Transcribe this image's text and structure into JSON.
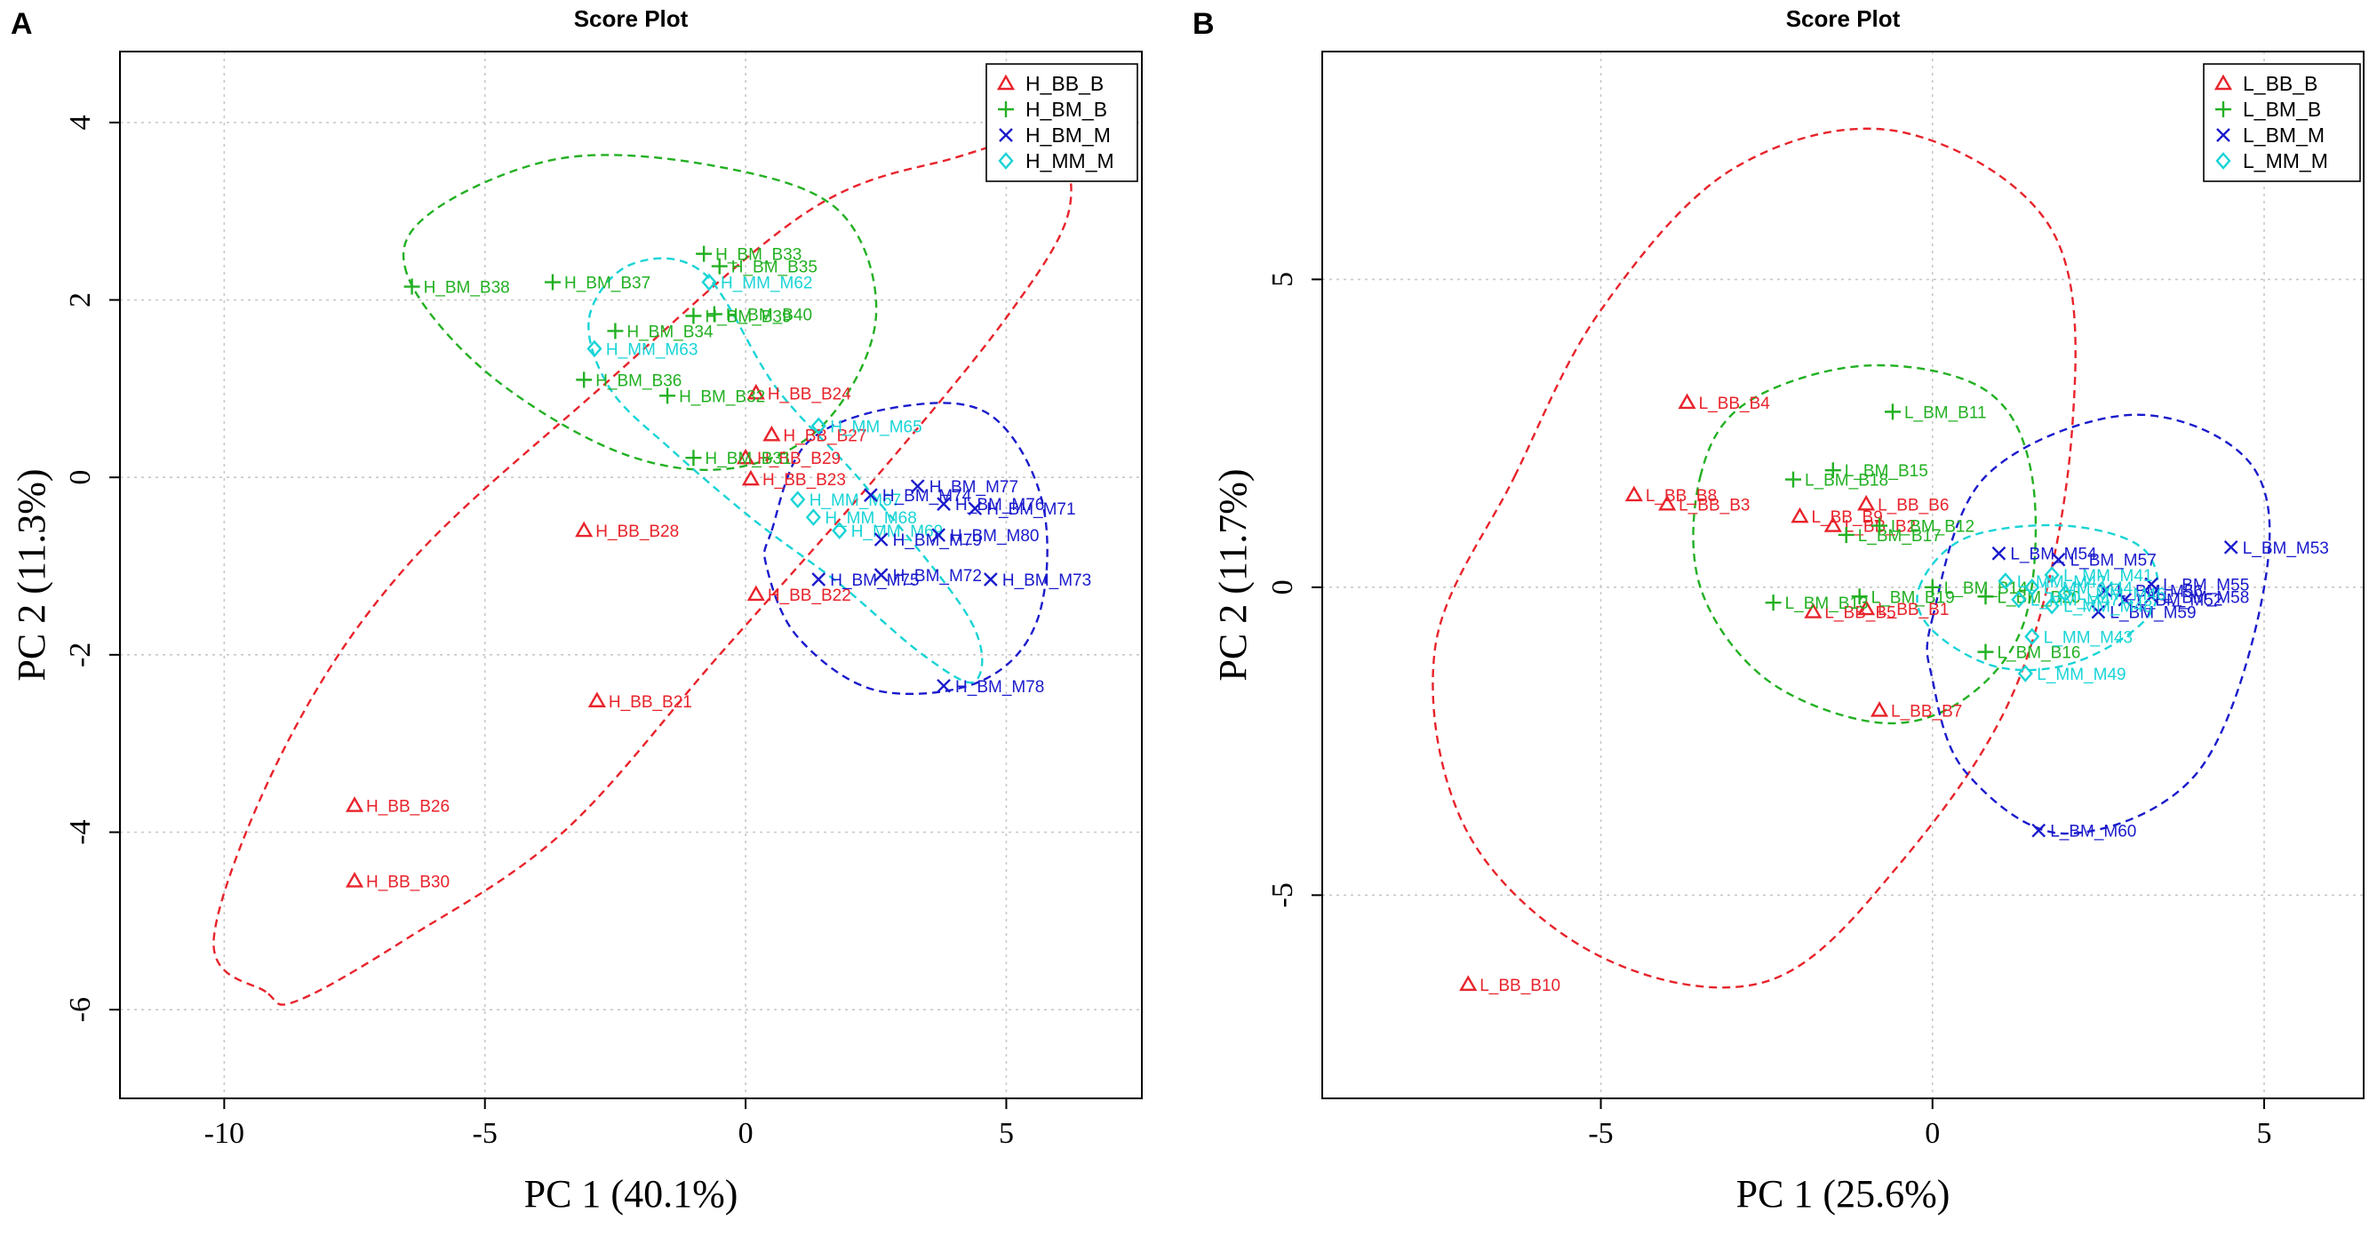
{
  "chart_data": [
    {
      "type": "scatter",
      "panel": "A",
      "title": "Score Plot",
      "xlabel": "PC 1 (40.1%)",
      "ylabel": "PC 2 (11.3%)",
      "xlim": [
        -12,
        7.6
      ],
      "ylim": [
        -7.0,
        4.8
      ],
      "xticks": [
        -10,
        -5,
        0,
        5
      ],
      "yticks": [
        -6,
        -4,
        -2,
        0,
        2,
        4
      ],
      "grid": true,
      "legend_position": "top-right",
      "colors": {
        "BB": "#e8232b",
        "BM_B": "#22b022",
        "BM_M": "#1a1acc",
        "MM": "#19d4d6"
      },
      "legend": [
        {
          "label": "H_BB_B",
          "group": "BB",
          "marker": "triangle"
        },
        {
          "label": "H_BM_B",
          "group": "BM_B",
          "marker": "plus"
        },
        {
          "label": "H_BM_M",
          "group": "BM_M",
          "marker": "cross"
        },
        {
          "label": "H_MM_M",
          "group": "MM",
          "marker": "diamond"
        }
      ],
      "ellipses": [
        {
          "group": "BB",
          "points": [
            [
              -9.2,
              -5.8
            ],
            [
              -10.2,
              -5.2
            ],
            [
              -8.8,
              -3.0
            ],
            [
              -6.5,
              -1.0
            ],
            [
              -2.8,
              1.0
            ],
            [
              1.2,
              3.0
            ],
            [
              4.0,
              3.6
            ],
            [
              5.8,
              3.8
            ],
            [
              6.2,
              3.0
            ],
            [
              5.0,
              1.8
            ],
            [
              2.5,
              0.0
            ],
            [
              -0.5,
              -2.0
            ],
            [
              -3.5,
              -4.0
            ],
            [
              -6.5,
              -5.2
            ],
            [
              -8.6,
              -5.9
            ]
          ]
        },
        {
          "group": "BM_B",
          "points": [
            [
              -6.5,
              2.3
            ],
            [
              -6.0,
              3.0
            ],
            [
              -3.5,
              3.6
            ],
            [
              -0.5,
              3.5
            ],
            [
              1.8,
              3.0
            ],
            [
              2.5,
              1.8
            ],
            [
              1.5,
              0.6
            ],
            [
              -0.3,
              0.1
            ],
            [
              -2.5,
              0.3
            ],
            [
              -5.0,
              1.2
            ]
          ]
        },
        {
          "group": "BM_M",
          "points": [
            [
              0.5,
              -0.6
            ],
            [
              1.2,
              0.4
            ],
            [
              3.0,
              0.8
            ],
            [
              4.7,
              0.7
            ],
            [
              5.7,
              -0.3
            ],
            [
              5.6,
              -1.6
            ],
            [
              4.5,
              -2.3
            ],
            [
              2.5,
              -2.4
            ],
            [
              1.0,
              -1.8
            ],
            [
              0.4,
              -1.0
            ]
          ]
        },
        {
          "group": "MM",
          "points": [
            [
              -3.0,
              1.8
            ],
            [
              -2.2,
              2.4
            ],
            [
              -0.8,
              2.3
            ],
            [
              0.6,
              1.0
            ],
            [
              2.3,
              -0.1
            ],
            [
              4.3,
              -1.6
            ],
            [
              4.4,
              -2.3
            ],
            [
              3.4,
              -2.0
            ],
            [
              1.8,
              -1.2
            ],
            [
              0.2,
              -0.5
            ],
            [
              -1.4,
              0.3
            ],
            [
              -2.6,
              1.0
            ]
          ]
        }
      ],
      "points": [
        {
          "group": "BB",
          "label": "H_BB_B24",
          "x": 0.2,
          "y": 0.95
        },
        {
          "group": "BB",
          "label": "H_BB_B27",
          "x": 0.5,
          "y": 0.48
        },
        {
          "group": "BB",
          "label": "H_BB_B29",
          "x": 0.0,
          "y": 0.22
        },
        {
          "group": "BB",
          "label": "H_BB_B23",
          "x": 0.1,
          "y": -0.02
        },
        {
          "group": "BB",
          "label": "H_BB_B28",
          "x": -3.1,
          "y": -0.6
        },
        {
          "group": "BB",
          "label": "H_BB_B22",
          "x": 0.2,
          "y": -1.32
        },
        {
          "group": "BB",
          "label": "H_BB_B21",
          "x": -2.85,
          "y": -2.52
        },
        {
          "group": "BB",
          "label": "H_BB_B26",
          "x": -7.5,
          "y": -3.7
        },
        {
          "group": "BB",
          "label": "H_BB_B30",
          "x": -7.5,
          "y": -4.55
        },
        {
          "group": "BM_B",
          "label": "H_BM_B38",
          "x": -6.4,
          "y": 2.15
        },
        {
          "group": "BM_B",
          "label": "H_BM_B37",
          "x": -3.7,
          "y": 2.2
        },
        {
          "group": "BM_B",
          "label": "H_BM_B33",
          "x": -0.8,
          "y": 2.52
        },
        {
          "group": "BM_B",
          "label": "H_BM_B35",
          "x": -0.5,
          "y": 2.38
        },
        {
          "group": "BM_B",
          "label": "H_BM_B34",
          "x": -2.5,
          "y": 1.65
        },
        {
          "group": "BM_B",
          "label": "H_BM_B39",
          "x": -1.0,
          "y": 1.82
        },
        {
          "group": "BM_B",
          "label": "H_BM_B40",
          "x": -0.6,
          "y": 1.84
        },
        {
          "group": "BM_B",
          "label": "H_BM_B36",
          "x": -3.1,
          "y": 1.1
        },
        {
          "group": "BM_B",
          "label": "H_BM_B32",
          "x": -1.5,
          "y": 0.92
        },
        {
          "group": "BM_B",
          "label": "H_BM_B31",
          "x": -1.0,
          "y": 0.22
        },
        {
          "group": "MM",
          "label": "H_MM_M62",
          "x": -0.7,
          "y": 2.2
        },
        {
          "group": "MM",
          "label": "H_MM_M63",
          "x": -2.9,
          "y": 1.45
        },
        {
          "group": "MM",
          "label": "H_MM_M65",
          "x": 1.4,
          "y": 0.58
        },
        {
          "group": "MM",
          "label": "H_MM_M67",
          "x": 1.0,
          "y": -0.25
        },
        {
          "group": "MM",
          "label": "H_MM_M68",
          "x": 1.3,
          "y": -0.45
        },
        {
          "group": "MM",
          "label": "H_MM_M69",
          "x": 1.8,
          "y": -0.6
        },
        {
          "group": "BM_M",
          "label": "H_BM_M74",
          "x": 2.4,
          "y": -0.2
        },
        {
          "group": "BM_M",
          "label": "H_BM_M77",
          "x": 3.3,
          "y": -0.1
        },
        {
          "group": "BM_M",
          "label": "H_BM_M76",
          "x": 3.8,
          "y": -0.3
        },
        {
          "group": "BM_M",
          "label": "H_BM_M71",
          "x": 4.4,
          "y": -0.35
        },
        {
          "group": "BM_M",
          "label": "H_BM_M79",
          "x": 2.6,
          "y": -0.7
        },
        {
          "group": "BM_M",
          "label": "H_BM_M80",
          "x": 3.7,
          "y": -0.65
        },
        {
          "group": "BM_M",
          "label": "H_BM_M72",
          "x": 2.6,
          "y": -1.1
        },
        {
          "group": "BM_M",
          "label": "H_BM_M75",
          "x": 1.4,
          "y": -1.15
        },
        {
          "group": "BM_M",
          "label": "H_BM_M73",
          "x": 4.7,
          "y": -1.15
        },
        {
          "group": "BM_M",
          "label": "H_BM_M78",
          "x": 3.8,
          "y": -2.35
        }
      ]
    },
    {
      "type": "scatter",
      "panel": "B",
      "title": "Score Plot",
      "xlabel": "PC 1 (25.6%)",
      "ylabel": "PC 2 (11.7%)",
      "xlim": [
        -9.2,
        6.5
      ],
      "ylim": [
        -8.3,
        8.7
      ],
      "xticks": [
        -5,
        0,
        5
      ],
      "yticks": [
        -5,
        0,
        5
      ],
      "grid": true,
      "legend_position": "top-right",
      "colors": {
        "BB": "#e8232b",
        "BM_B": "#22b022",
        "BM_M": "#1a1acc",
        "MM": "#19d4d6"
      },
      "legend": [
        {
          "label": "L_BB_B",
          "group": "BB",
          "marker": "triangle"
        },
        {
          "label": "L_BM_B",
          "group": "BM_B",
          "marker": "plus"
        },
        {
          "label": "L_BM_M",
          "group": "BM_M",
          "marker": "cross"
        },
        {
          "label": "L_MM_M",
          "group": "MM",
          "marker": "diamond"
        }
      ],
      "ellipses": [
        {
          "group": "BB",
          "points": [
            [
              -6.3,
              1.8
            ],
            [
              -5.0,
              4.5
            ],
            [
              -3.0,
              6.8
            ],
            [
              -0.5,
              7.4
            ],
            [
              1.8,
              5.8
            ],
            [
              2.1,
              2.5
            ],
            [
              1.3,
              -1.5
            ],
            [
              -0.5,
              -4.5
            ],
            [
              -2.5,
              -6.4
            ],
            [
              -5.0,
              -6.0
            ],
            [
              -7.0,
              -4.0
            ],
            [
              -7.5,
              -1.0
            ]
          ]
        },
        {
          "group": "BM_B",
          "points": [
            [
              -3.5,
              1.8
            ],
            [
              -2.8,
              3.0
            ],
            [
              -1.0,
              3.6
            ],
            [
              0.8,
              3.2
            ],
            [
              1.5,
              1.8
            ],
            [
              1.4,
              -0.5
            ],
            [
              0.5,
              -1.8
            ],
            [
              -0.8,
              -2.2
            ],
            [
              -2.5,
              -1.5
            ],
            [
              -3.5,
              0.0
            ]
          ]
        },
        {
          "group": "BM_M",
          "points": [
            [
              0.0,
              -0.5
            ],
            [
              0.8,
              1.8
            ],
            [
              3.0,
              2.8
            ],
            [
              4.8,
              2.0
            ],
            [
              5.0,
              0.0
            ],
            [
              4.0,
              -3.0
            ],
            [
              2.0,
              -4.0
            ],
            [
              0.5,
              -3.0
            ],
            [
              0.0,
              -1.5
            ]
          ]
        },
        {
          "group": "MM",
          "points": [
            [
              -0.2,
              0.0
            ],
            [
              0.5,
              0.8
            ],
            [
              2.0,
              1.0
            ],
            [
              3.2,
              0.6
            ],
            [
              3.3,
              -0.4
            ],
            [
              2.2,
              -1.2
            ],
            [
              1.0,
              -1.3
            ],
            [
              0.0,
              -0.7
            ]
          ]
        }
      ],
      "points": [
        {
          "group": "BB",
          "label": "L_BB_B4",
          "x": -3.7,
          "y": 3.0
        },
        {
          "group": "BB",
          "label": "L_BB_B8",
          "x": -4.5,
          "y": 1.5
        },
        {
          "group": "BB",
          "label": "L_BB_B3",
          "x": -4.0,
          "y": 1.35
        },
        {
          "group": "BB",
          "label": "L_BB_B6",
          "x": -1.0,
          "y": 1.35
        },
        {
          "group": "BB",
          "label": "L_BB_B9",
          "x": -2.0,
          "y": 1.15
        },
        {
          "group": "BB",
          "label": "L_BB_B2",
          "x": -1.5,
          "y": 1.0
        },
        {
          "group": "BB",
          "label": "L_BB_B1",
          "x": -1.0,
          "y": -0.35
        },
        {
          "group": "BB",
          "label": "L_BB_B5",
          "x": -1.8,
          "y": -0.4
        },
        {
          "group": "BB",
          "label": "L_BB_B7",
          "x": -0.8,
          "y": -2.0
        },
        {
          "group": "BB",
          "label": "L_BB_B10",
          "x": -7.0,
          "y": -6.45
        },
        {
          "group": "BM_B",
          "label": "L_BM_B11",
          "x": -0.6,
          "y": 2.85
        },
        {
          "group": "BM_B",
          "label": "L_BM_B15",
          "x": -1.5,
          "y": 1.9
        },
        {
          "group": "BM_B",
          "label": "L_BM_B18",
          "x": -2.1,
          "y": 1.75
        },
        {
          "group": "BM_B",
          "label": "L_BM_B12",
          "x": -0.8,
          "y": 1.0
        },
        {
          "group": "BM_B",
          "label": "L_BM_B17",
          "x": -1.3,
          "y": 0.85
        },
        {
          "group": "BM_B",
          "label": "L_BM_B13",
          "x": -2.4,
          "y": -0.25
        },
        {
          "group": "BM_B",
          "label": "L_BM_B19",
          "x": -1.1,
          "y": -0.15
        },
        {
          "group": "BM_B",
          "label": "L_BM_B14",
          "x": 0.0,
          "y": 0.0
        },
        {
          "group": "BM_B",
          "label": "L_BM_B20",
          "x": 0.8,
          "y": -0.15
        },
        {
          "group": "BM_B",
          "label": "L_BM_B16",
          "x": 0.8,
          "y": -1.05
        },
        {
          "group": "BM_M",
          "label": "L_BM_M53",
          "x": 4.5,
          "y": 0.65
        },
        {
          "group": "BM_M",
          "label": "L_BM_M54",
          "x": 1.0,
          "y": 0.55
        },
        {
          "group": "BM_M",
          "label": "L_BM_M57",
          "x": 1.9,
          "y": 0.45
        },
        {
          "group": "BM_M",
          "label": "L_BM_M55",
          "x": 3.3,
          "y": 0.05
        },
        {
          "group": "BM_M",
          "label": "L_BM_M56",
          "x": 2.6,
          "y": -0.05
        },
        {
          "group": "BM_M",
          "label": "L_BM_M58",
          "x": 3.3,
          "y": -0.15
        },
        {
          "group": "BM_M",
          "label": "L_BM_M52",
          "x": 2.9,
          "y": -0.2
        },
        {
          "group": "BM_M",
          "label": "L_BM_M59",
          "x": 2.5,
          "y": -0.4
        },
        {
          "group": "BM_M",
          "label": "L_BM_M60",
          "x": 1.6,
          "y": -3.95
        },
        {
          "group": "MM",
          "label": "L_MM_M41",
          "x": 1.8,
          "y": 0.2
        },
        {
          "group": "MM",
          "label": "L_MM_M42",
          "x": 1.1,
          "y": 0.1
        },
        {
          "group": "MM",
          "label": "L_MM_M44",
          "x": 1.5,
          "y": 0.0
        },
        {
          "group": "MM",
          "label": "L_MM_M46",
          "x": 2.0,
          "y": -0.1
        },
        {
          "group": "MM",
          "label": "L_MM_M47",
          "x": 1.3,
          "y": -0.2
        },
        {
          "group": "MM",
          "label": "L_MM_M48",
          "x": 1.8,
          "y": -0.3
        },
        {
          "group": "MM",
          "label": "L_MM_M43",
          "x": 1.5,
          "y": -0.8
        },
        {
          "group": "MM",
          "label": "L_MM_M49",
          "x": 1.4,
          "y": -1.4
        }
      ]
    }
  ]
}
